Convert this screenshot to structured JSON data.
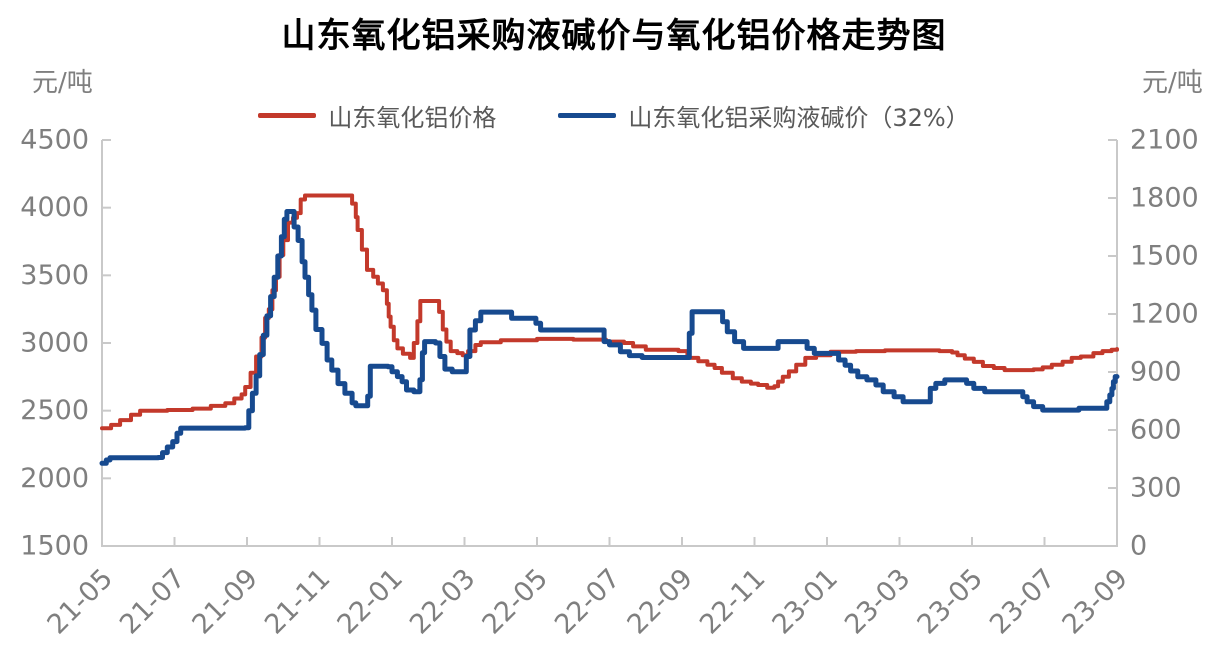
{
  "title": "山东氧化铝采购液碱价与氧化铝价格走势图",
  "left_axis_unit": "元/吨",
  "right_axis_unit": "元/吨",
  "legend": [
    {
      "label": "山东氧化铝价格",
      "color": "#C3392B"
    },
    {
      "label": "山东氧化铝采购液碱价（32%）",
      "color": "#174A8F"
    }
  ],
  "chart_data": {
    "type": "line",
    "title": "山东氧化铝采购液碱价与氧化铝价格走势图",
    "line_style": "step",
    "grid": false,
    "legend_position": "top",
    "x_axis": {
      "tick_labels": [
        "21-05",
        "21-07",
        "21-09",
        "21-11",
        "22-01",
        "22-03",
        "22-05",
        "22-07",
        "22-09",
        "22-11",
        "23-01",
        "23-03",
        "23-05",
        "23-07",
        "23-09"
      ],
      "months_span": 28,
      "note": "x values in series are months after 2021-05"
    },
    "left_axis": {
      "unit": "元/吨",
      "min": 1500,
      "max": 4500,
      "tick_step": 500,
      "ticks": [
        4500,
        4000,
        3500,
        3000,
        2500,
        2000,
        1500
      ]
    },
    "right_axis": {
      "unit": "元/吨",
      "min": 0,
      "max": 2100,
      "tick_step": 300,
      "ticks": [
        2100,
        1800,
        1500,
        1200,
        900,
        600,
        300,
        0
      ]
    },
    "series": [
      {
        "name": "山东氧化铝价格",
        "axis": "left",
        "color": "#C3392B",
        "stroke_width": 4,
        "points": [
          [
            0,
            2370
          ],
          [
            0.25,
            2395
          ],
          [
            0.5,
            2430
          ],
          [
            0.8,
            2470
          ],
          [
            1.05,
            2500
          ],
          [
            1.8,
            2505
          ],
          [
            2.5,
            2515
          ],
          [
            3,
            2535
          ],
          [
            3.4,
            2555
          ],
          [
            3.65,
            2590
          ],
          [
            3.85,
            2620
          ],
          [
            3.95,
            2675
          ],
          [
            4.1,
            2780
          ],
          [
            4.25,
            2900
          ],
          [
            4.4,
            3040
          ],
          [
            4.5,
            3185
          ],
          [
            4.6,
            3250
          ],
          [
            4.7,
            3390
          ],
          [
            4.8,
            3490
          ],
          [
            4.9,
            3650
          ],
          [
            5,
            3760
          ],
          [
            5.13,
            3890
          ],
          [
            5.27,
            3925
          ],
          [
            5.38,
            3960
          ],
          [
            5.48,
            4060
          ],
          [
            5.6,
            4090
          ],
          [
            6.76,
            4090
          ],
          [
            6.9,
            4030
          ],
          [
            7,
            3930
          ],
          [
            7.05,
            3835
          ],
          [
            7.17,
            3690
          ],
          [
            7.31,
            3540
          ],
          [
            7.48,
            3490
          ],
          [
            7.61,
            3440
          ],
          [
            7.75,
            3390
          ],
          [
            7.86,
            3290
          ],
          [
            7.91,
            3195
          ],
          [
            7.96,
            3120
          ],
          [
            8.05,
            3020
          ],
          [
            8.15,
            2960
          ],
          [
            8.3,
            2920
          ],
          [
            8.5,
            2890
          ],
          [
            8.6,
            3000
          ],
          [
            8.7,
            3160
          ],
          [
            8.78,
            3310
          ],
          [
            9.2,
            3310
          ],
          [
            9.3,
            3230
          ],
          [
            9.4,
            3100
          ],
          [
            9.5,
            3010
          ],
          [
            9.62,
            2940
          ],
          [
            9.8,
            2925
          ],
          [
            9.95,
            2910
          ],
          [
            10.1,
            2940
          ],
          [
            10.3,
            2985
          ],
          [
            10.45,
            3005
          ],
          [
            11,
            3020
          ],
          [
            12,
            3030
          ],
          [
            13,
            3025
          ],
          [
            13.9,
            3010
          ],
          [
            14.4,
            3000
          ],
          [
            14.65,
            2975
          ],
          [
            15,
            2950
          ],
          [
            15.9,
            2940
          ],
          [
            16.15,
            2890
          ],
          [
            16.45,
            2865
          ],
          [
            16.7,
            2840
          ],
          [
            16.9,
            2815
          ],
          [
            17.1,
            2780
          ],
          [
            17.4,
            2740
          ],
          [
            17.65,
            2715
          ],
          [
            17.9,
            2700
          ],
          [
            18.1,
            2690
          ],
          [
            18.35,
            2670
          ],
          [
            18.55,
            2680
          ],
          [
            18.65,
            2715
          ],
          [
            18.78,
            2750
          ],
          [
            18.95,
            2790
          ],
          [
            19.15,
            2840
          ],
          [
            19.4,
            2890
          ],
          [
            19.7,
            2910
          ],
          [
            20.1,
            2935
          ],
          [
            20.8,
            2940
          ],
          [
            21.6,
            2945
          ],
          [
            22.4,
            2945
          ],
          [
            23.1,
            2940
          ],
          [
            23.45,
            2930
          ],
          [
            23.6,
            2910
          ],
          [
            23.8,
            2885
          ],
          [
            24.05,
            2860
          ],
          [
            24.3,
            2830
          ],
          [
            24.6,
            2815
          ],
          [
            24.9,
            2800
          ],
          [
            25.45,
            2800
          ],
          [
            25.7,
            2805
          ],
          [
            25.95,
            2820
          ],
          [
            26.2,
            2840
          ],
          [
            26.5,
            2862
          ],
          [
            26.75,
            2890
          ],
          [
            27,
            2900
          ],
          [
            27.35,
            2925
          ],
          [
            27.6,
            2940
          ],
          [
            27.85,
            2950
          ],
          [
            28,
            2955
          ]
        ]
      },
      {
        "name": "山东氧化铝采购液碱价（32%）",
        "axis": "right",
        "color": "#174A8F",
        "stroke_width": 5,
        "points": [
          [
            0,
            428
          ],
          [
            0.12,
            445
          ],
          [
            0.22,
            456
          ],
          [
            1.55,
            458
          ],
          [
            1.67,
            483
          ],
          [
            1.8,
            512
          ],
          [
            1.95,
            540
          ],
          [
            2.07,
            583
          ],
          [
            2.17,
            610
          ],
          [
            3.95,
            612
          ],
          [
            4.05,
            700
          ],
          [
            4.15,
            790
          ],
          [
            4.25,
            880
          ],
          [
            4.35,
            990
          ],
          [
            4.45,
            1090
          ],
          [
            4.55,
            1190
          ],
          [
            4.65,
            1290
          ],
          [
            4.75,
            1390
          ],
          [
            4.85,
            1500
          ],
          [
            4.95,
            1600
          ],
          [
            5.03,
            1690
          ],
          [
            5.1,
            1730
          ],
          [
            5.22,
            1730
          ],
          [
            5.3,
            1650
          ],
          [
            5.41,
            1580
          ],
          [
            5.52,
            1470
          ],
          [
            5.6,
            1390
          ],
          [
            5.7,
            1300
          ],
          [
            5.79,
            1220
          ],
          [
            5.9,
            1120
          ],
          [
            6.07,
            1048
          ],
          [
            6.21,
            962
          ],
          [
            6.34,
            910
          ],
          [
            6.51,
            840
          ],
          [
            6.7,
            790
          ],
          [
            6.9,
            740
          ],
          [
            7,
            725
          ],
          [
            7.28,
            725
          ],
          [
            7.33,
            775
          ],
          [
            7.4,
            930
          ],
          [
            7.89,
            927
          ],
          [
            8,
            901
          ],
          [
            8.15,
            876
          ],
          [
            8.28,
            850
          ],
          [
            8.4,
            807
          ],
          [
            8.6,
            798
          ],
          [
            8.77,
            860
          ],
          [
            8.84,
            1000
          ],
          [
            8.9,
            1057
          ],
          [
            9.2,
            1050
          ],
          [
            9.32,
            980
          ],
          [
            9.46,
            915
          ],
          [
            9.66,
            901
          ],
          [
            9.95,
            901
          ],
          [
            10.05,
            980
          ],
          [
            10.15,
            1117
          ],
          [
            10.3,
            1165
          ],
          [
            10.45,
            1210
          ],
          [
            11.2,
            1210
          ],
          [
            11.3,
            1178
          ],
          [
            11.85,
            1178
          ],
          [
            11.97,
            1152
          ],
          [
            12.1,
            1117
          ],
          [
            13.7,
            1117
          ],
          [
            13.85,
            1057
          ],
          [
            14,
            1040
          ],
          [
            14.3,
            1005
          ],
          [
            14.55,
            985
          ],
          [
            14.9,
            975
          ],
          [
            16.1,
            975
          ],
          [
            16.2,
            1100
          ],
          [
            16.28,
            1212
          ],
          [
            17.05,
            1212
          ],
          [
            17.12,
            1160
          ],
          [
            17.25,
            1108
          ],
          [
            17.45,
            1057
          ],
          [
            17.7,
            1022
          ],
          [
            18.55,
            1022
          ],
          [
            18.65,
            1057
          ],
          [
            19.3,
            1057
          ],
          [
            19.45,
            1022
          ],
          [
            19.65,
            996
          ],
          [
            20.2,
            996
          ],
          [
            20.32,
            962
          ],
          [
            20.5,
            935
          ],
          [
            20.65,
            905
          ],
          [
            20.85,
            875
          ],
          [
            21.1,
            859
          ],
          [
            21.35,
            833
          ],
          [
            21.55,
            798
          ],
          [
            21.85,
            772
          ],
          [
            22.1,
            746
          ],
          [
            22.75,
            746
          ],
          [
            22.85,
            815
          ],
          [
            23,
            841
          ],
          [
            23.25,
            859
          ],
          [
            23.7,
            859
          ],
          [
            23.85,
            841
          ],
          [
            24.05,
            815
          ],
          [
            24.35,
            798
          ],
          [
            25.25,
            798
          ],
          [
            25.4,
            772
          ],
          [
            25.52,
            746
          ],
          [
            25.7,
            721
          ],
          [
            25.95,
            703
          ],
          [
            26.82,
            703
          ],
          [
            26.95,
            712
          ],
          [
            27.6,
            712
          ],
          [
            27.72,
            746
          ],
          [
            27.8,
            781
          ],
          [
            27.86,
            815
          ],
          [
            27.9,
            850
          ],
          [
            27.95,
            876
          ],
          [
            28,
            876
          ]
        ]
      }
    ],
    "style": {
      "axis_color": "#C9C9C9",
      "tick_label_color": "#7F7F7F",
      "title_color": "#000000",
      "legend_text_color": "#595959"
    }
  }
}
